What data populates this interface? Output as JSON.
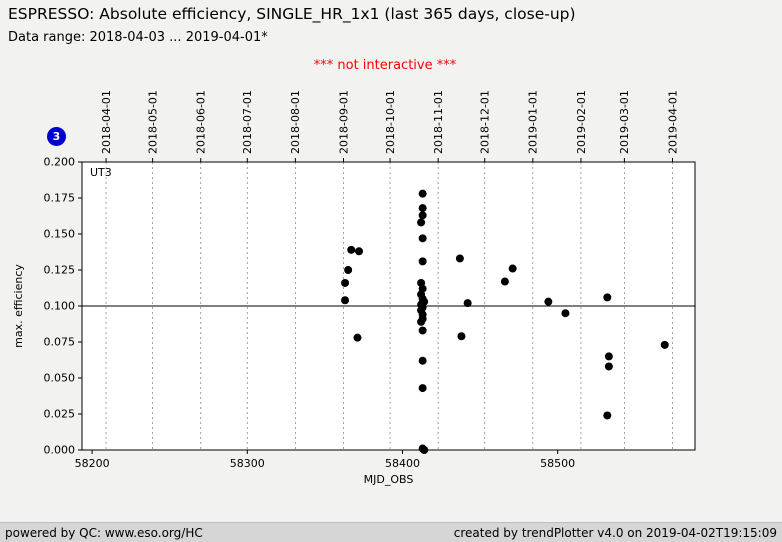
{
  "header": {
    "title": "ESPRESSO: Absolute efficiency, SINGLE_HR_1x1 (last 365 days, close-up)",
    "data_range": "Data range: 2018-04-03 ... 2019-04-01*",
    "notice": "*** not interactive ***"
  },
  "badge": {
    "label": "3",
    "color": "#0000cc"
  },
  "footer": {
    "left": "powered by QC: www.eso.org/HC",
    "right": "created by trendPlotter v4.0 on 2019-04-02T19:15:09"
  },
  "chart_data": {
    "type": "scatter",
    "inner_label": "UT3",
    "xlabel": "MJD_OBS",
    "ylabel": "max. efficiency",
    "xlim": [
      58193.5,
      58588.5
    ],
    "ylim": [
      0,
      0.2
    ],
    "x_ticks": [
      58200,
      58300,
      58400,
      58500
    ],
    "y_ticks": [
      0,
      0.025,
      0.05,
      0.075,
      0.1,
      0.125,
      0.15,
      0.175,
      0.2
    ],
    "reference_line_y": 0.1,
    "grid": "vertical-dashed-monthly",
    "legend": "none",
    "marker": {
      "shape": "circle",
      "color": "#000000",
      "size": 4
    },
    "top_axis_dates": [
      {
        "label": "2018-04-01",
        "mjd": 58209
      },
      {
        "label": "2018-05-01",
        "mjd": 58239
      },
      {
        "label": "2018-06-01",
        "mjd": 58270
      },
      {
        "label": "2018-07-01",
        "mjd": 58300
      },
      {
        "label": "2018-08-01",
        "mjd": 58331
      },
      {
        "label": "2018-09-01",
        "mjd": 58362
      },
      {
        "label": "2018-10-01",
        "mjd": 58392
      },
      {
        "label": "2018-11-01",
        "mjd": 58423
      },
      {
        "label": "2018-12-01",
        "mjd": 58453
      },
      {
        "label": "2019-01-01",
        "mjd": 58484
      },
      {
        "label": "2019-02-01",
        "mjd": 58515
      },
      {
        "label": "2019-03-01",
        "mjd": 58543
      },
      {
        "label": "2019-04-01",
        "mjd": 58574
      }
    ],
    "points": [
      [
        58363,
        0.104
      ],
      [
        58363,
        0.116
      ],
      [
        58365,
        0.125
      ],
      [
        58367,
        0.139
      ],
      [
        58372,
        0.138
      ],
      [
        58371,
        0.078
      ],
      [
        58413,
        0.178
      ],
      [
        58413,
        0.168
      ],
      [
        58413,
        0.163
      ],
      [
        58412,
        0.158
      ],
      [
        58413,
        0.147
      ],
      [
        58413,
        0.131
      ],
      [
        58412,
        0.116
      ],
      [
        58413,
        0.112
      ],
      [
        58412,
        0.108
      ],
      [
        58413,
        0.105
      ],
      [
        58414,
        0.103
      ],
      [
        58412,
        0.101
      ],
      [
        58413,
        0.099
      ],
      [
        58412,
        0.097
      ],
      [
        58413,
        0.094
      ],
      [
        58413,
        0.091
      ],
      [
        58412,
        0.089
      ],
      [
        58413,
        0.083
      ],
      [
        58413,
        0.062
      ],
      [
        58413,
        0.043
      ],
      [
        58413,
        0.001
      ],
      [
        58414,
        0.0
      ],
      [
        58437,
        0.133
      ],
      [
        58438,
        0.079
      ],
      [
        58442,
        0.102
      ],
      [
        58466,
        0.117
      ],
      [
        58471,
        0.126
      ],
      [
        58494,
        0.103
      ],
      [
        58505,
        0.095
      ],
      [
        58532,
        0.106
      ],
      [
        58533,
        0.065
      ],
      [
        58533,
        0.058
      ],
      [
        58532,
        0.024
      ],
      [
        58569,
        0.073
      ]
    ]
  }
}
